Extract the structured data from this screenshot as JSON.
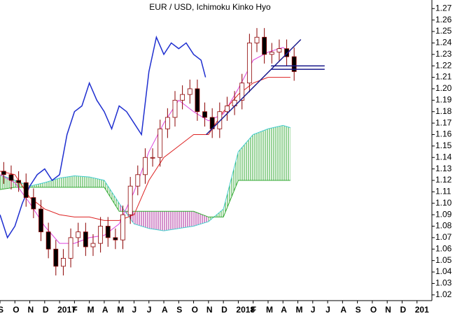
{
  "chart_data": {
    "type": "candlestick",
    "title": "EUR / USD, Ichimoku Kinko Hyo",
    "xlim": [
      0,
      29
    ],
    "ylim": [
      1.015,
      1.2775
    ],
    "xticks": [
      {
        "value": 0,
        "label": "S"
      },
      {
        "value": 1,
        "label": "O"
      },
      {
        "value": 2,
        "label": "N"
      },
      {
        "value": 3,
        "label": "D"
      },
      {
        "value": 4,
        "label": "2017"
      },
      {
        "value": 5,
        "label": "F"
      },
      {
        "value": 6,
        "label": "M"
      },
      {
        "value": 7,
        "label": "A"
      },
      {
        "value": 8,
        "label": "M"
      },
      {
        "value": 9,
        "label": "J"
      },
      {
        "value": 10,
        "label": "J"
      },
      {
        "value": 11,
        "label": "A"
      },
      {
        "value": 12,
        "label": "S"
      },
      {
        "value": 13,
        "label": "O"
      },
      {
        "value": 14,
        "label": "N"
      },
      {
        "value": 15,
        "label": "D"
      },
      {
        "value": 16,
        "label": "2018"
      },
      {
        "value": 17,
        "label": "F"
      },
      {
        "value": 18,
        "label": "M"
      },
      {
        "value": 19,
        "label": "A"
      },
      {
        "value": 20,
        "label": "M"
      },
      {
        "value": 21,
        "label": "J"
      },
      {
        "value": 22,
        "label": "J"
      },
      {
        "value": 23,
        "label": "A"
      },
      {
        "value": 24,
        "label": "S"
      },
      {
        "value": 25,
        "label": "O"
      },
      {
        "value": 26,
        "label": "N"
      },
      {
        "value": 27,
        "label": "D"
      },
      {
        "value": 28,
        "label": "201"
      }
    ],
    "yticks": [
      1.02,
      1.03,
      1.04,
      1.05,
      1.06,
      1.07,
      1.08,
      1.09,
      {
        "value": 1.1,
        "label": "1.10"
      },
      1.11,
      1.12,
      1.13,
      1.14,
      1.15,
      1.16,
      1.17,
      1.18,
      1.19,
      {
        "value": 1.2,
        "label": "1.20"
      },
      1.21,
      1.22,
      1.23,
      1.24,
      1.25,
      1.26,
      1.27
    ],
    "up_color": "#ffffff",
    "down_color": "#000000",
    "candle_edge": "#8b0000",
    "x": [
      0.25,
      0.75,
      1.25,
      1.75,
      2.25,
      2.75,
      3.25,
      3.75,
      4.25,
      4.75,
      5.25,
      5.75,
      6.25,
      6.75,
      7.25,
      7.75,
      8.25,
      8.75,
      9.25,
      9.75,
      10.25,
      10.75,
      11.25,
      11.75,
      12.25,
      12.75,
      13.25,
      13.75,
      14.25,
      14.75,
      15.25,
      15.75,
      16.25,
      16.75,
      17.25,
      17.75,
      18.25,
      18.75,
      19.25,
      19.75
    ],
    "open": [
      1.128,
      1.125,
      1.12,
      1.118,
      1.105,
      1.095,
      1.075,
      1.06,
      1.045,
      1.052,
      1.07,
      1.075,
      1.062,
      1.065,
      1.08,
      1.07,
      1.068,
      1.09,
      1.115,
      1.125,
      1.14,
      1.14,
      1.165,
      1.175,
      1.19,
      1.195,
      1.2,
      1.18,
      1.175,
      1.165,
      1.18,
      1.185,
      1.19,
      1.205,
      1.24,
      1.245,
      1.23,
      1.232,
      1.235,
      1.228
    ],
    "high": [
      1.136,
      1.133,
      1.128,
      1.126,
      1.113,
      1.103,
      1.083,
      1.068,
      1.06,
      1.078,
      1.083,
      1.083,
      1.073,
      1.088,
      1.088,
      1.078,
      1.098,
      1.123,
      1.133,
      1.148,
      1.148,
      1.173,
      1.183,
      1.198,
      1.203,
      1.208,
      1.208,
      1.188,
      1.183,
      1.188,
      1.193,
      1.198,
      1.213,
      1.248,
      1.253,
      1.253,
      1.24,
      1.243,
      1.243,
      1.236
    ],
    "low": [
      1.117,
      1.112,
      1.11,
      1.097,
      1.087,
      1.067,
      1.052,
      1.037,
      1.037,
      1.044,
      1.062,
      1.054,
      1.054,
      1.057,
      1.062,
      1.06,
      1.06,
      1.082,
      1.107,
      1.117,
      1.132,
      1.132,
      1.157,
      1.167,
      1.182,
      1.187,
      1.172,
      1.167,
      1.157,
      1.157,
      1.172,
      1.177,
      1.182,
      1.197,
      1.232,
      1.222,
      1.222,
      1.224,
      1.22,
      1.207
    ],
    "close": [
      1.125,
      1.12,
      1.118,
      1.105,
      1.095,
      1.075,
      1.06,
      1.045,
      1.052,
      1.07,
      1.075,
      1.062,
      1.065,
      1.08,
      1.07,
      1.068,
      1.09,
      1.115,
      1.125,
      1.14,
      1.14,
      1.165,
      1.175,
      1.19,
      1.195,
      1.2,
      1.18,
      1.175,
      1.165,
      1.18,
      1.185,
      1.19,
      1.205,
      1.24,
      1.245,
      1.23,
      1.232,
      1.235,
      1.228,
      1.215
    ],
    "cloud": {
      "bull_color": "#33aa33",
      "bear_color": "#aa2299",
      "x": [
        0,
        1,
        2,
        3,
        4,
        5,
        6,
        7,
        8,
        9,
        10,
        11,
        12,
        13,
        14,
        15,
        16,
        17,
        18,
        19,
        19.5
      ],
      "a": {
        "color": "#44cccc",
        "values": [
          1.125,
          1.12,
          1.115,
          1.118,
          1.122,
          1.124,
          1.123,
          1.12,
          1.1,
          1.082,
          1.078,
          1.076,
          1.078,
          1.08,
          1.084,
          1.095,
          1.145,
          1.16,
          1.165,
          1.168,
          1.166
        ]
      },
      "b": {
        "color": "#33aa33",
        "values": [
          1.112,
          1.114,
          1.114,
          1.114,
          1.114,
          1.114,
          1.114,
          1.114,
          1.093,
          1.093,
          1.093,
          1.093,
          1.093,
          1.093,
          1.088,
          1.088,
          1.12,
          1.12,
          1.12,
          1.12,
          1.12
        ]
      }
    },
    "lines": [
      {
        "color": "#dd44dd",
        "x": [
          0,
          1,
          2,
          3,
          4,
          5,
          6,
          7,
          8,
          9,
          10,
          11,
          12,
          13,
          14,
          15,
          16,
          17,
          18,
          19,
          19.5
        ],
        "values": [
          1.125,
          1.118,
          1.1,
          1.08,
          1.065,
          1.065,
          1.07,
          1.072,
          1.082,
          1.11,
          1.145,
          1.17,
          1.19,
          1.18,
          1.172,
          1.178,
          1.2,
          1.225,
          1.232,
          1.236,
          1.232
        ]
      },
      {
        "color": "#dd2222",
        "x": [
          0,
          1,
          2,
          3,
          4,
          5,
          6,
          7,
          8,
          9,
          10,
          11,
          12,
          13,
          14,
          15,
          16,
          17,
          18,
          19,
          19.5
        ],
        "values": [
          1.128,
          1.125,
          1.105,
          1.095,
          1.09,
          1.088,
          1.088,
          1.085,
          1.085,
          1.09,
          1.12,
          1.14,
          1.15,
          1.16,
          1.16,
          1.18,
          1.195,
          1.205,
          1.21,
          1.21,
          1.21
        ]
      },
      {
        "color": "#1f2fd0",
        "x": [
          0,
          0.5,
          1,
          1.5,
          2,
          2.5,
          3,
          3.5,
          4,
          4.5,
          5,
          5.5,
          6,
          6.5,
          7,
          7.5,
          8,
          8.5,
          9,
          9.5,
          10,
          10.5,
          11,
          11.5,
          12,
          12.5,
          13,
          13.5,
          13.8
        ],
        "values": [
          1.09,
          1.07,
          1.08,
          1.1,
          1.115,
          1.125,
          1.13,
          1.12,
          1.125,
          1.16,
          1.18,
          1.185,
          1.205,
          1.19,
          1.18,
          1.165,
          1.185,
          1.18,
          1.17,
          1.16,
          1.215,
          1.245,
          1.23,
          1.24,
          1.235,
          1.24,
          1.23,
          1.225,
          1.21
        ]
      }
    ],
    "trendlines": {
      "color": "#1a1a8c",
      "items": [
        {
          "x": [
            13.85,
            20.2
          ],
          "y": [
            1.16,
            1.243
          ]
        },
        {
          "x": [
            18.2,
            21.8
          ],
          "y": [
            1.22,
            1.22
          ]
        },
        {
          "x": [
            18.2,
            21.8
          ],
          "y": [
            1.217,
            1.217
          ]
        }
      ]
    }
  }
}
